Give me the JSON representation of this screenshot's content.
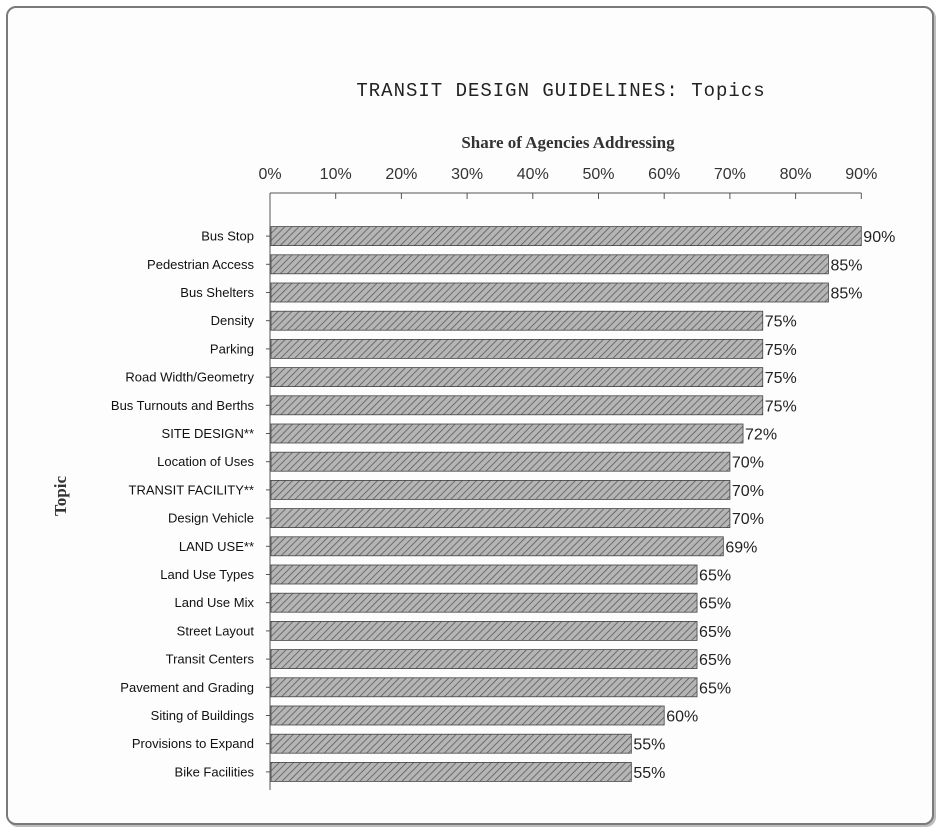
{
  "chart_data": {
    "type": "bar",
    "orientation": "horizontal",
    "title": "TRANSIT DESIGN GUIDELINES: Topics",
    "xlabel": "Share of Agencies Addressing",
    "ylabel": "Topic",
    "xlim": [
      0,
      90
    ],
    "xticks": [
      "0%",
      "10%",
      "20%",
      "30%",
      "40%",
      "50%",
      "60%",
      "70%",
      "80%",
      "90%"
    ],
    "x_axis_position": "top",
    "grid": false,
    "categories": [
      "Bus Stop",
      "Pedestrian Access",
      "Bus Shelters",
      "Density",
      "Parking",
      "Road Width/Geometry",
      "Bus Turnouts and Berths",
      "SITE DESIGN**",
      "Location of Uses",
      "TRANSIT FACILITY**",
      "Design Vehicle",
      "LAND USE**",
      "Land Use Types",
      "Land Use Mix",
      "Street Layout",
      "Transit Centers",
      "Pavement and Grading",
      "Siting of Buildings",
      "Provisions to Expand",
      "Bike Facilities"
    ],
    "values": [
      90,
      85,
      85,
      75,
      75,
      75,
      75,
      72,
      70,
      70,
      70,
      69,
      65,
      65,
      65,
      65,
      65,
      60,
      55,
      55
    ],
    "data_labels": [
      "90%",
      "85%",
      "85%",
      "75%",
      "75%",
      "75%",
      "75%",
      "72%",
      "70%",
      "70%",
      "70%",
      "69%",
      "65%",
      "65%",
      "65%",
      "65%",
      "65%",
      "60%",
      "55%",
      "55%"
    ],
    "bar_color": "#8a8a8a"
  }
}
